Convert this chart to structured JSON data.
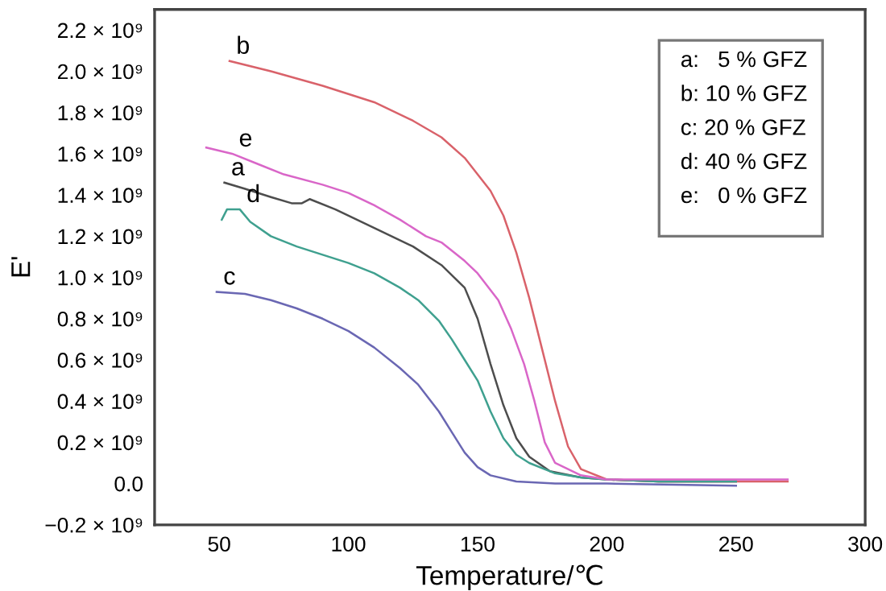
{
  "chart_data": {
    "type": "line",
    "xlabel": "Temperature/℃",
    "ylabel": "E'",
    "xlim": [
      25,
      300
    ],
    "xticks": [
      50,
      100,
      150,
      200,
      250,
      300
    ],
    "ylim": [
      -200000000.0,
      2300000000.0
    ],
    "yticks": [
      {
        "value": -200000000.0,
        "label": "−0.2 × 10⁹"
      },
      {
        "value": 0,
        "label": "0.0"
      },
      {
        "value": 200000000.0,
        "label": "0.2 × 10⁹"
      },
      {
        "value": 400000000.0,
        "label": "0.4 × 10⁹"
      },
      {
        "value": 600000000.0,
        "label": "0.6 × 10⁹"
      },
      {
        "value": 800000000.0,
        "label": "0.8 × 10⁹"
      },
      {
        "value": 1000000000.0,
        "label": "1.0 × 10⁹"
      },
      {
        "value": 1200000000.0,
        "label": "1.2 × 10⁹"
      },
      {
        "value": 1400000000.0,
        "label": "1.4 × 10⁹"
      },
      {
        "value": 1600000000.0,
        "label": "1.6 × 10⁹"
      },
      {
        "value": 1800000000.0,
        "label": "1.8 × 10⁹"
      },
      {
        "value": 2000000000.0,
        "label": "2.0 × 10⁹"
      },
      {
        "value": 2200000000.0,
        "label": "2.2 × 10⁹"
      }
    ],
    "grid": false,
    "marker": "none",
    "line_style": "solid",
    "series": [
      {
        "color": "#4d4d4d",
        "x": [
          52,
          60,
          70,
          78,
          82,
          85,
          95,
          110,
          125,
          136,
          145,
          150,
          155,
          160,
          165,
          170,
          178,
          190,
          200,
          220,
          250
        ],
        "values": [
          1460000000.0,
          1430000000.0,
          1390000000.0,
          1360000000.0,
          1360000000.0,
          1380000000.0,
          1330000000.0,
          1240000000.0,
          1150000000.0,
          1060000000.0,
          950000000.0,
          800000000.0,
          580000000.0,
          380000000.0,
          220000000.0,
          130000000.0,
          60000000.0,
          30000000.0,
          20000000.0,
          10000000.0,
          10000000.0
        ]
      },
      {
        "color": "#d9626a",
        "x": [
          54,
          70,
          90,
          110,
          125,
          136,
          145,
          155,
          160,
          165,
          170,
          175,
          180,
          185,
          190,
          200,
          220,
          250,
          270
        ],
        "values": [
          2050000000.0,
          2000000000.0,
          1930000000.0,
          1850000000.0,
          1760000000.0,
          1680000000.0,
          1580000000.0,
          1420000000.0,
          1300000000.0,
          1120000000.0,
          900000000.0,
          650000000.0,
          400000000.0,
          180000000.0,
          70000000.0,
          20000000.0,
          10000000.0,
          10000000.0,
          10000000.0
        ]
      },
      {
        "color": "#6a67b3",
        "x": [
          49,
          60,
          70,
          80,
          90,
          100,
          110,
          120,
          127,
          135,
          140,
          145,
          150,
          155,
          165,
          180,
          200,
          250
        ],
        "values": [
          930000000.0,
          920000000.0,
          890000000.0,
          850000000.0,
          800000000.0,
          740000000.0,
          660000000.0,
          560000000.0,
          480000000.0,
          350000000.0,
          250000000.0,
          150000000.0,
          80000000.0,
          40000000.0,
          10000000.0,
          0,
          0,
          -10000000.0
        ]
      },
      {
        "color": "#3fa08f",
        "x": [
          51,
          53,
          58,
          62,
          70,
          80,
          90,
          100,
          110,
          120,
          127,
          135,
          140,
          145,
          150,
          155,
          160,
          165,
          170,
          180,
          190,
          200,
          220,
          250
        ],
        "values": [
          1280000000.0,
          1330000000.0,
          1330000000.0,
          1270000000.0,
          1200000000.0,
          1150000000.0,
          1110000000.0,
          1070000000.0,
          1020000000.0,
          950000000.0,
          890000000.0,
          790000000.0,
          700000000.0,
          600000000.0,
          500000000.0,
          350000000.0,
          220000000.0,
          140000000.0,
          100000000.0,
          50000000.0,
          30000000.0,
          20000000.0,
          10000000.0,
          10000000.0
        ]
      },
      {
        "color": "#d966c8",
        "x": [
          45,
          55,
          65,
          75,
          90,
          100,
          110,
          120,
          130,
          136,
          145,
          150,
          158,
          163,
          168,
          172,
          176,
          180,
          190,
          200,
          220,
          250,
          270
        ],
        "values": [
          1630000000.0,
          1600000000.0,
          1550000000.0,
          1500000000.0,
          1450000000.0,
          1410000000.0,
          1350000000.0,
          1280000000.0,
          1200000000.0,
          1170000000.0,
          1080000000.0,
          1020000000.0,
          890000000.0,
          750000000.0,
          580000000.0,
          400000000.0,
          200000000.0,
          100000000.0,
          40000000.0,
          20000000.0,
          20000000.0,
          20000000.0,
          20000000.0
        ]
      }
    ],
    "annotations": [
      {
        "text": "b",
        "x": 54,
        "y": 2050000000.0
      },
      {
        "text": "e",
        "x": 55,
        "y": 1600000000.0
      },
      {
        "text": "a",
        "x": 52,
        "y": 1460000000.0
      },
      {
        "text": "d",
        "x": 58,
        "y": 1330000000.0
      },
      {
        "text": "c",
        "x": 49,
        "y": 930000000.0
      },
      "a:   5 % GFZ",
      "b: 10 % GFZ",
      "c: 20 % GFZ",
      "d: 40 % GFZ",
      "e:   0 % GFZ"
    ]
  }
}
